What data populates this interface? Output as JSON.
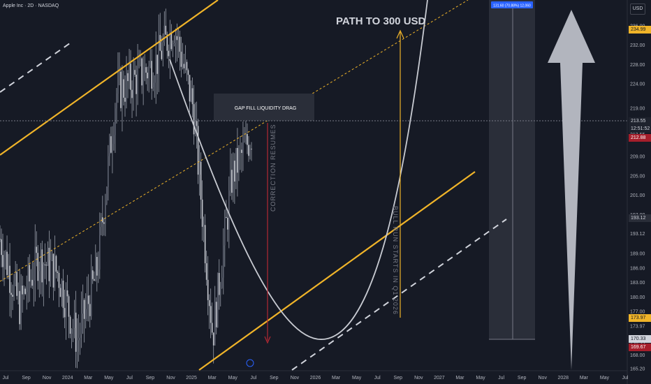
{
  "header": {
    "title": "Apple Inc · 2D · NASDAQ"
  },
  "price_axis": {
    "currency": "USD",
    "ticks": [
      "236.00",
      "232.00",
      "228.00",
      "224.00",
      "219.00",
      "213.55",
      "209.00",
      "205.00",
      "201.00",
      "197.00",
      "193.12",
      "189.00",
      "186.00",
      "183.00",
      "180.00",
      "177.00",
      "173.97",
      "170.33",
      "169.67",
      "168.00",
      "165.20"
    ]
  },
  "price_tags": {
    "last_price": "213.55",
    "countdown": "12:51:52",
    "tag_234": "234.99",
    "tag_212": "212.88",
    "tag_193": "193.12",
    "tag_173": "173.97",
    "tag_170": "170.33",
    "tag_169": "169.67"
  },
  "measure_label": "131.60 (70.88%) 12,060",
  "annotations": {
    "path_title": "PATH TO 300 USD",
    "gap_fill": "GAP FILL LIQUIDITY DRAG",
    "correction": "CORRECTION RESUMES",
    "bull_run": "BULL RUN STARTS IN Q1 2026"
  },
  "time_axis": {
    "labels": [
      "Jul",
      "Sep",
      "Nov",
      "2024",
      "Mar",
      "May",
      "Jul",
      "Sep",
      "Nov",
      "2025",
      "Mar",
      "May",
      "Jul",
      "Sep",
      "Nov",
      "2026",
      "Mar",
      "May",
      "Jul",
      "Sep",
      "Nov",
      "2027",
      "Mar",
      "May",
      "Jul",
      "Sep",
      "Nov",
      "2028",
      "Mar",
      "May",
      "Jul"
    ]
  },
  "colors": {
    "background": "#161a25",
    "channel_line": "#f0b429",
    "dashed_line": "#d1d4dc",
    "candles": "#9aa0ab",
    "arrow": "#b2b5be",
    "red_arrow": "#b22833",
    "tag_yellow": "#f0b429",
    "tag_red": "#a51e2b",
    "tag_blue": "#2962ff"
  },
  "chart_data": {
    "type": "candlestick",
    "symbol": "Apple Inc",
    "interval": "2D",
    "exchange": "NASDAQ",
    "y_axis_currency": "USD",
    "last_price": 213.55,
    "points": [
      {
        "x": "Jul 2023",
        "y": 192
      },
      {
        "x": "Sep 2023",
        "y": 178
      },
      {
        "x": "Nov 2023",
        "y": 188
      },
      {
        "x": "2024",
        "y": 185
      },
      {
        "x": "Mar 2024",
        "y": 171
      },
      {
        "x": "May 2024",
        "y": 185
      },
      {
        "x": "Jul 2024",
        "y": 222
      },
      {
        "x": "Sep 2024",
        "y": 225
      },
      {
        "x": "Nov 2024",
        "y": 228
      },
      {
        "x": "2025",
        "y": 236
      },
      {
        "x": "Mar 2025",
        "y": 219
      },
      {
        "x": "Apr 2025",
        "y": 172
      },
      {
        "x": "May 2025",
        "y": 205
      },
      {
        "x": "Jul 2025",
        "y": 213.55
      }
    ],
    "annotations": [
      "PATH TO 300 USD",
      "GAP FILL LIQUIDITY DRAG",
      "CORRECTION RESUMES",
      "BULL RUN STARTS IN Q1 2026"
    ]
  }
}
